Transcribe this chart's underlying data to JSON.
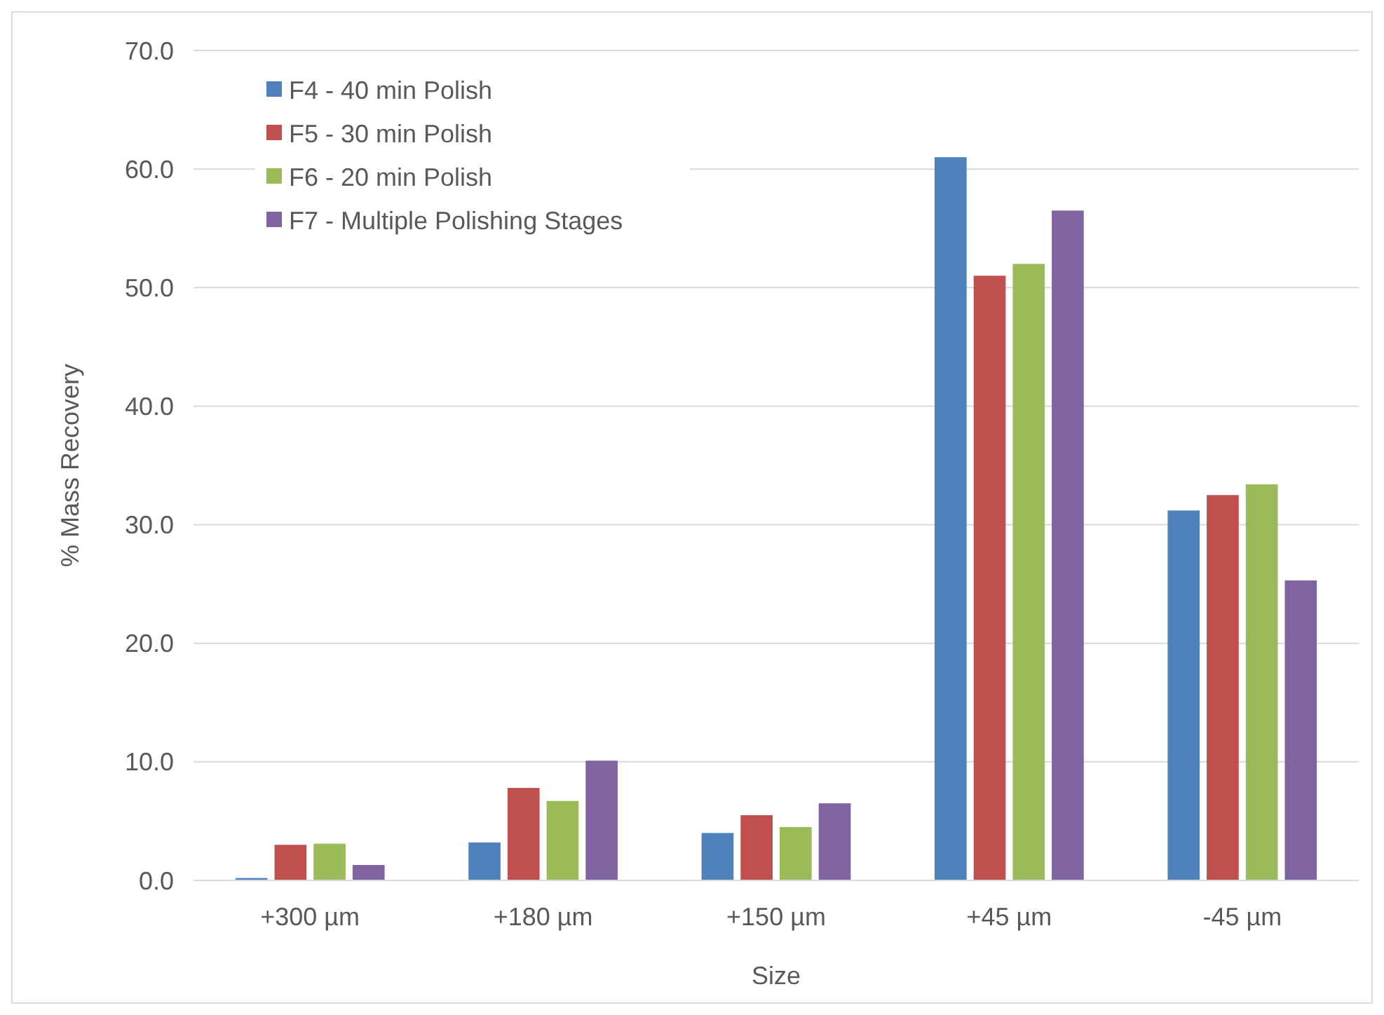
{
  "chart_data": {
    "type": "bar",
    "xlabel": "Size",
    "ylabel": "% Mass Recovery",
    "categories": [
      "+300 µm",
      "+180 µm",
      "+150 µm",
      "+45 µm",
      "-45 µm"
    ],
    "series": [
      {
        "name": "F4 - 40 min Polish",
        "color": "#4f81bd",
        "values": [
          0.2,
          3.2,
          4.0,
          61.0,
          31.2
        ]
      },
      {
        "name": "F5 - 30 min Polish",
        "color": "#c0504d",
        "values": [
          3.0,
          7.8,
          5.5,
          51.0,
          32.5
        ]
      },
      {
        "name": "F6 - 20 min Polish",
        "color": "#9bbb59",
        "values": [
          3.1,
          6.7,
          4.5,
          52.0,
          33.4
        ]
      },
      {
        "name": "F7 - Multiple Polishing Stages",
        "color": "#8064a2",
        "values": [
          1.3,
          10.1,
          6.5,
          56.5,
          25.3
        ]
      }
    ],
    "ylim": [
      0,
      70
    ],
    "yticks": [
      {
        "value": 0,
        "label": "0.0"
      },
      {
        "value": 10,
        "label": "10.0"
      },
      {
        "value": 20,
        "label": "20.0"
      },
      {
        "value": 30,
        "label": "30.0"
      },
      {
        "value": 40,
        "label": "40.0"
      },
      {
        "value": 50,
        "label": "50.0"
      },
      {
        "value": 60,
        "label": "60.0"
      },
      {
        "value": 70,
        "label": "70.0"
      }
    ],
    "grid": "y",
    "legend": "top left"
  }
}
